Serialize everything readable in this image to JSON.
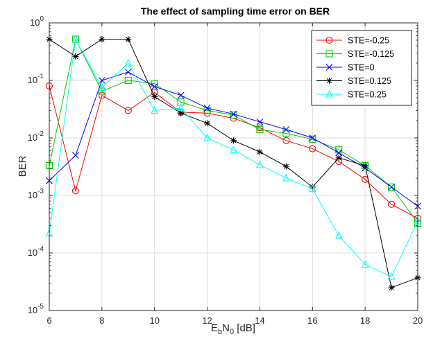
{
  "chart_data": {
    "type": "line",
    "title": "The effect of sampling time error on BER",
    "xlabel": {
      "base": "E",
      "sub1": "b",
      "mid": "N",
      "sub2": "0",
      "unit": " [dB]"
    },
    "ylabel": "BER",
    "xlim": [
      6,
      20
    ],
    "ylim": [
      1e-05,
      1
    ],
    "yscale": "log",
    "xticks": [
      "6",
      "8",
      "10",
      "12",
      "14",
      "16",
      "18",
      "20"
    ],
    "yticks": [
      {
        "base": "10",
        "exp": "0",
        "value": 1
      },
      {
        "base": "10",
        "exp": "-1",
        "value": 0.1
      },
      {
        "base": "10",
        "exp": "-2",
        "value": 0.01
      },
      {
        "base": "10",
        "exp": "-3",
        "value": 0.001
      },
      {
        "base": "10",
        "exp": "-4",
        "value": 0.0001
      },
      {
        "base": "10",
        "exp": "-5",
        "value": 1e-05
      }
    ],
    "grid": true,
    "legend_position": "top-right",
    "x": [
      6,
      7,
      8,
      9,
      10,
      11,
      12,
      13,
      14,
      15,
      16,
      17,
      18,
      19,
      20
    ],
    "series": [
      {
        "name": "STE=-0.25",
        "color": "#ff0000",
        "marker": "circle",
        "values": [
          0.08,
          0.0012,
          0.055,
          0.03,
          0.062,
          0.028,
          0.027,
          0.022,
          0.015,
          0.009,
          0.0065,
          0.0039,
          0.0019,
          0.0007,
          0.0004
        ]
      },
      {
        "name": "STE=-0.125",
        "color": "#00cc00",
        "marker": "square",
        "values": [
          0.0033,
          0.52,
          0.065,
          0.1,
          0.088,
          0.042,
          0.03,
          0.025,
          0.014,
          0.012,
          0.0095,
          0.0062,
          0.0033,
          0.0014,
          0.00033
        ]
      },
      {
        "name": "STE=0",
        "color": "#0000ff",
        "marker": "x",
        "values": [
          0.0018,
          0.005,
          0.1,
          0.14,
          0.078,
          0.055,
          0.033,
          0.026,
          0.019,
          0.014,
          0.01,
          0.0055,
          0.003,
          0.0014,
          0.00065
        ]
      },
      {
        "name": "STE=0.125",
        "color": "#000000",
        "marker": "asterisk",
        "values": [
          0.52,
          0.26,
          0.52,
          0.52,
          0.052,
          0.027,
          0.018,
          0.009,
          0.0057,
          0.0032,
          0.0014,
          0.0045,
          0.0033,
          2.5e-05,
          3.7e-05
        ]
      },
      {
        "name": "STE=0.25",
        "color": "#00ffff",
        "marker": "triangle",
        "values": [
          0.00022,
          0.52,
          0.075,
          0.2,
          0.03,
          0.033,
          0.01,
          0.0062,
          0.0034,
          0.002,
          0.0013,
          0.0002,
          6.3e-05,
          3.9e-05,
          0.00036
        ]
      }
    ]
  }
}
